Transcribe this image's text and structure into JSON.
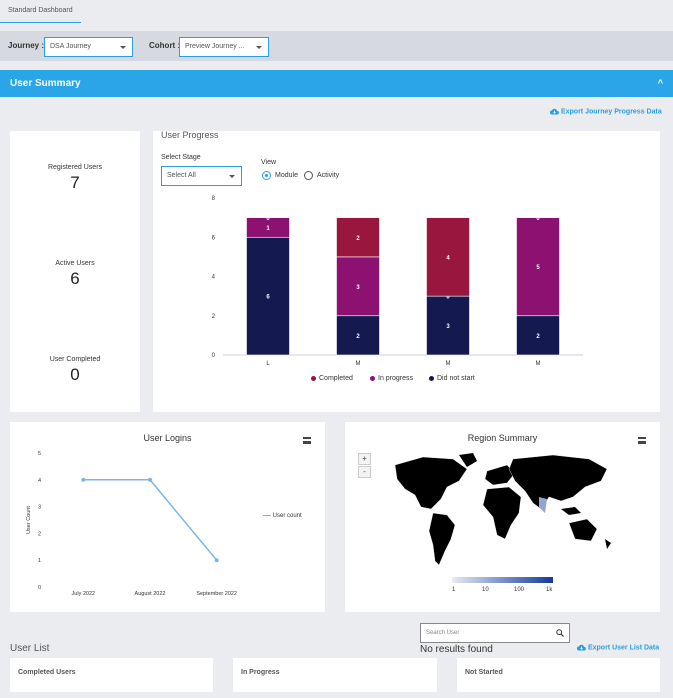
{
  "tabs": {
    "standard_dashboard": "Standard Dashboard"
  },
  "filters": {
    "journey_label": "Journey :",
    "journey_value": "DSA Journey",
    "cohort_label": "Cohort :",
    "cohort_value": "Preview Journey ..."
  },
  "user_summary": {
    "title": "User Summary",
    "collapse_glyph": "^",
    "export_journey": "Export Journey Progress Data"
  },
  "stats": [
    {
      "label": "Registered Users",
      "value": "7"
    },
    {
      "label": "Active Users",
      "value": "6"
    },
    {
      "label": "User Completed",
      "value": "0"
    }
  ],
  "user_progress": {
    "title": "User Progress",
    "select_stage_label": "Select Stage",
    "select_stage_value": "Select All",
    "view_label": "View",
    "view_options": [
      "Module",
      "Activity"
    ],
    "view_selected": "Module"
  },
  "colors": {
    "completed": "#99163f",
    "in_progress": "#8c1170",
    "did_not_start": "#14194f",
    "accent": "#2aa6e8",
    "line": "#7cb5ec"
  },
  "user_logins": {
    "title": "User Logins",
    "series_name": "User count"
  },
  "region": {
    "title": "Region Summary",
    "zoom_in": "+",
    "zoom_out": "-",
    "scale_labels": [
      "1",
      "10",
      "100",
      "1k"
    ]
  },
  "user_list": {
    "title": "User List",
    "search_placeholder": "Search User",
    "no_results": "No results found",
    "export": "Export User List Data",
    "columns": [
      "Completed Users",
      "In Progress",
      "Not Started"
    ]
  },
  "chart_data": [
    {
      "type": "bar",
      "stacked": true,
      "title": "User Progress",
      "categories": [
        "L",
        "M",
        "M",
        "M"
      ],
      "ylim": [
        0,
        8
      ],
      "yticks": [
        0,
        2,
        4,
        6,
        8
      ],
      "series": [
        {
          "name": "Did not start",
          "values": [
            6,
            2,
            3,
            2
          ]
        },
        {
          "name": "In progress",
          "values": [
            1,
            3,
            0,
            5
          ]
        },
        {
          "name": "Completed",
          "values": [
            0,
            2,
            4,
            0
          ]
        }
      ],
      "legend": [
        "Completed",
        "In progress",
        "Did not start"
      ]
    },
    {
      "type": "line",
      "title": "User Logins",
      "x": [
        "July 2022",
        "August 2022",
        "September 2022"
      ],
      "series": [
        {
          "name": "User count",
          "values": [
            4,
            4,
            1
          ]
        }
      ],
      "ylabel": "User Count",
      "ylim": [
        0,
        5
      ],
      "yticks": [
        0,
        1,
        2,
        3,
        4,
        5
      ]
    }
  ]
}
